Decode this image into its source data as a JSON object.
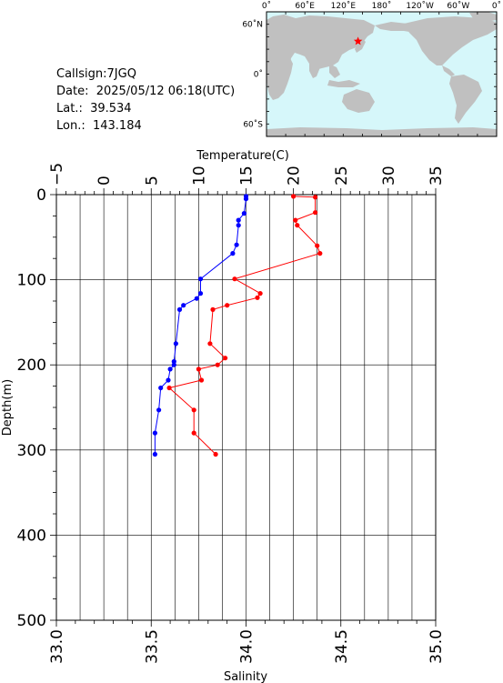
{
  "station": {
    "callsign": "Callsign:7JGQ",
    "date": "Date:  2025/05/12 06:18(UTC)",
    "lat": "Lat.:  39.534",
    "lon": "Lon.:  143.184"
  },
  "map": {
    "top_labels": [
      "0˚",
      "60˚E",
      "120˚E",
      "180˚",
      "120˚W",
      "60˚W",
      "0˚"
    ],
    "left_labels": [
      "60˚N",
      "0˚",
      "60˚S"
    ],
    "ocean_color": "#d6f7fa",
    "land_color": "#c0c0c0",
    "marker_color": "#ff0000",
    "marker": {
      "lon": 143.184,
      "lat": 39.534
    }
  },
  "chart_data": {
    "type": "line",
    "ylabel": "Depth(m)",
    "ylim": [
      500,
      0
    ],
    "yticks": [
      "0",
      "100",
      "200",
      "300",
      "400",
      "500"
    ],
    "x_top": {
      "label": "Temperature(C)",
      "range": [
        -5,
        35
      ],
      "ticks": [
        "−5",
        "0",
        "5",
        "10",
        "15",
        "20",
        "25",
        "30",
        "35"
      ]
    },
    "x_bottom": {
      "label": "Salinity",
      "range": [
        33.0,
        35.0
      ],
      "ticks": [
        "33.0",
        "33.5",
        "34.0",
        "34.5",
        "35.0"
      ]
    },
    "grid": true,
    "series": [
      {
        "axis": "top",
        "color": "#ff0000",
        "points": [
          [
            20.0,
            2
          ],
          [
            22.3,
            3
          ],
          [
            22.3,
            21
          ],
          [
            20.2,
            30
          ],
          [
            20.4,
            36
          ],
          [
            22.5,
            60
          ],
          [
            22.8,
            69
          ],
          [
            13.8,
            99
          ],
          [
            16.5,
            116
          ],
          [
            16.2,
            121
          ],
          [
            13.0,
            130
          ],
          [
            11.5,
            135
          ],
          [
            11.2,
            175
          ],
          [
            12.8,
            192
          ],
          [
            12.0,
            200
          ],
          [
            10.0,
            205
          ],
          [
            10.3,
            218
          ],
          [
            6.9,
            227
          ],
          [
            9.5,
            253
          ],
          [
            9.5,
            280
          ],
          [
            11.8,
            305
          ]
        ]
      },
      {
        "axis": "bottom",
        "color": "#0000ff",
        "points": [
          [
            34.0,
            2
          ],
          [
            34.0,
            5
          ],
          [
            33.99,
            22
          ],
          [
            33.96,
            30
          ],
          [
            33.96,
            36
          ],
          [
            33.95,
            59
          ],
          [
            33.93,
            69
          ],
          [
            33.76,
            99
          ],
          [
            33.76,
            116
          ],
          [
            33.74,
            122
          ],
          [
            33.67,
            130
          ],
          [
            33.65,
            135
          ],
          [
            33.63,
            175
          ],
          [
            33.62,
            196
          ],
          [
            33.62,
            200
          ],
          [
            33.6,
            205
          ],
          [
            33.59,
            218
          ],
          [
            33.55,
            227
          ],
          [
            33.54,
            253
          ],
          [
            33.52,
            280
          ],
          [
            33.52,
            305
          ]
        ]
      }
    ]
  }
}
